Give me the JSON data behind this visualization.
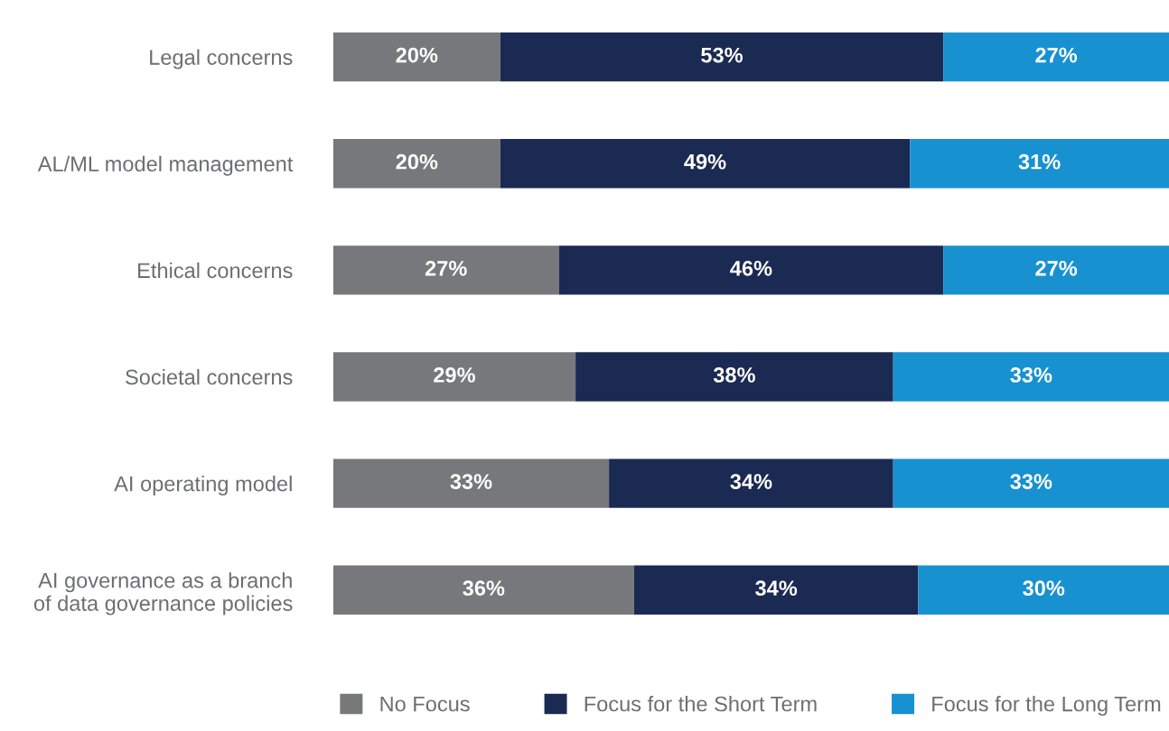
{
  "chart_data": {
    "type": "bar",
    "orientation": "horizontal",
    "stacked": true,
    "legend": "bottom",
    "grid": false,
    "tick_labels": "y",
    "categories": [
      "Legal concerns",
      "AL/ML model management",
      "Ethical concerns",
      "Societal concerns",
      "AI operating model",
      "AI governance as a branch\nof data governance policies"
    ],
    "series": [
      {
        "name": "No Focus",
        "color": "#77787b",
        "values": [
          20,
          20,
          27,
          29,
          33,
          36
        ],
        "value_labels": [
          "20%",
          "20%",
          "27%",
          "29%",
          "33%",
          "36%"
        ]
      },
      {
        "name": "Focus for the Short Term",
        "color": "#1b2a52",
        "values": [
          53,
          49,
          46,
          38,
          34,
          34
        ],
        "value_labels": [
          "53%",
          "49%",
          "46%",
          "38%",
          "34%",
          "34%"
        ]
      },
      {
        "name": "Focus for the Long Term",
        "color": "#1891d1",
        "values": [
          27,
          31,
          27,
          33,
          33,
          30
        ],
        "value_labels": [
          "27%",
          "31%",
          "27%",
          "33%",
          "33%",
          "30%"
        ]
      }
    ]
  }
}
